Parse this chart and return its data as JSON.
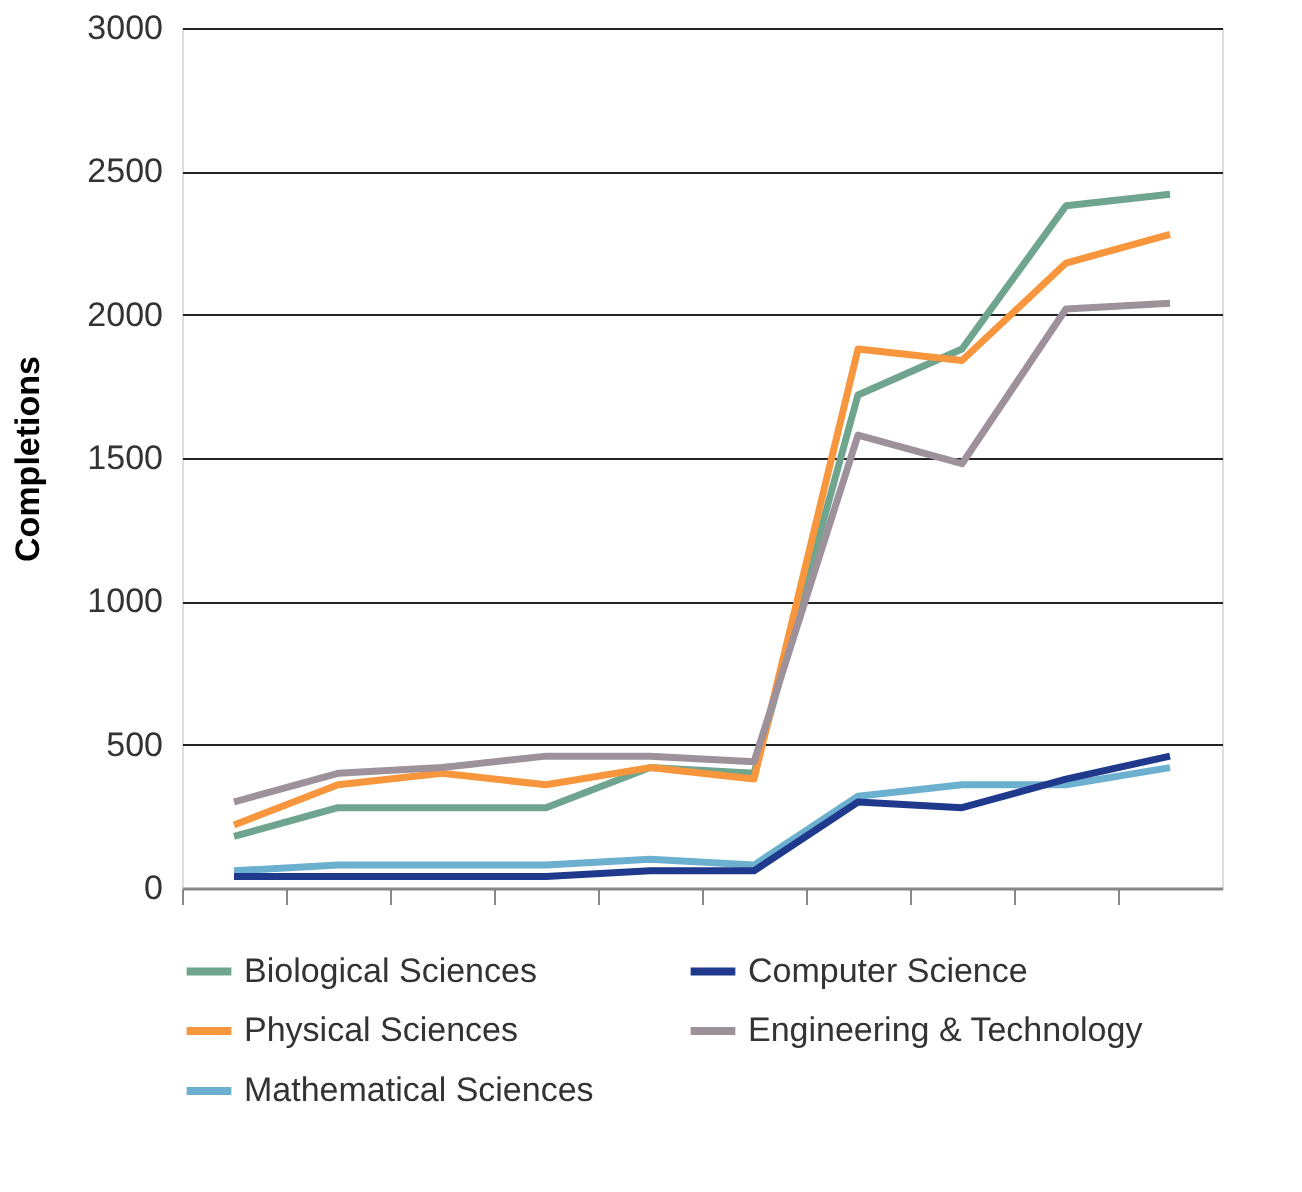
{
  "chart_data": {
    "type": "line",
    "ylabel": "Completions",
    "categories": [
      null,
      null,
      null,
      null,
      null,
      null,
      null,
      null,
      null,
      null
    ],
    "ylim": [
      0,
      3000
    ],
    "yticks": [
      0,
      500,
      1000,
      1500,
      2000,
      2500,
      3000
    ],
    "grid": "y",
    "legend": "bottom",
    "marker": "none",
    "line_style": "solid",
    "series": [
      {
        "name": "Biological Sciences",
        "color": "#6fa58f",
        "values": [
          180,
          280,
          280,
          280,
          420,
          400,
          1720,
          1880,
          2380,
          2420
        ]
      },
      {
        "name": "Physical Sciences",
        "color": "#f7963c",
        "values": [
          220,
          360,
          400,
          360,
          420,
          380,
          1880,
          1840,
          2180,
          2280
        ]
      },
      {
        "name": "Mathematical Sciences",
        "color": "#6cb0cf",
        "values": [
          60,
          80,
          80,
          80,
          100,
          80,
          320,
          360,
          360,
          420
        ]
      },
      {
        "name": "Computer Science",
        "color": "#1f3a8c",
        "values": [
          40,
          40,
          40,
          40,
          60,
          60,
          300,
          280,
          380,
          460
        ]
      },
      {
        "name": "Engineering & Technology",
        "color": "#9d929c",
        "values": [
          300,
          400,
          420,
          460,
          460,
          440,
          1580,
          1480,
          2020,
          2040
        ]
      }
    ]
  }
}
